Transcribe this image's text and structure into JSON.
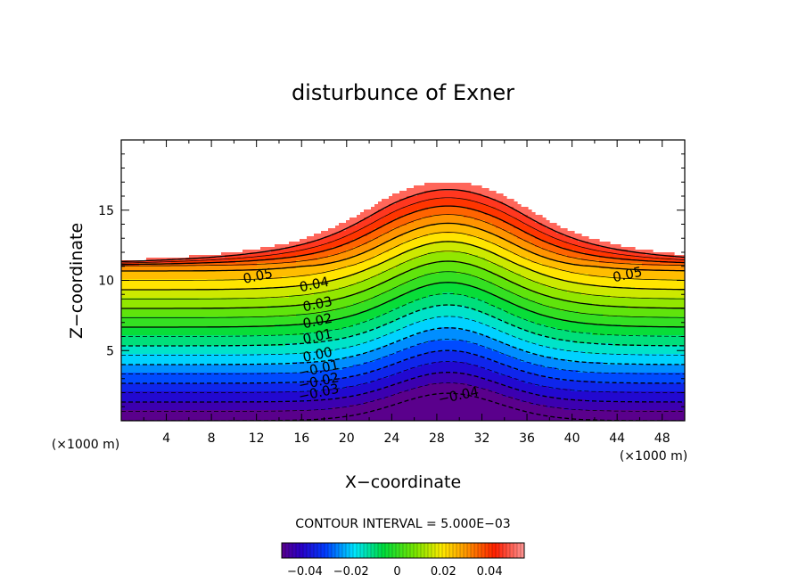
{
  "chart_data": {
    "type": "contour",
    "title": "disturbunce of Exner",
    "xlabel": "X−coordinate",
    "ylabel": "Z−coordinate",
    "x_unit_left": "(×1000 m)",
    "x_unit_right": "(×1000 m)",
    "xlim": [
      0,
      50
    ],
    "ylim": [
      0,
      20
    ],
    "x_ticks": [
      4,
      8,
      12,
      16,
      20,
      24,
      28,
      32,
      36,
      40,
      44,
      48
    ],
    "y_ticks": [
      5,
      10,
      15
    ],
    "contour_interval_text": "CONTOUR INTERVAL = 5.000E−03",
    "contour_interval": 0.005,
    "level_range": [
      -0.05,
      0.055
    ],
    "field_description_levels": {
      "bottom": -0.05,
      "top_clipped_above": 0.055
    },
    "contour_labels": [
      {
        "text": "0.05",
        "x": 12.2,
        "z": 10.0
      },
      {
        "text": "0.05",
        "x": 45.0,
        "z": 10.1
      },
      {
        "text": "0.04",
        "x": 17.2,
        "z": 9.4
      },
      {
        "text": "0.03",
        "x": 17.5,
        "z": 8.0
      },
      {
        "text": "0.02",
        "x": 17.5,
        "z": 6.8
      },
      {
        "text": "0.01",
        "x": 17.5,
        "z": 5.7
      },
      {
        "text": "0.00",
        "x": 17.5,
        "z": 4.4
      },
      {
        "text": "−0.01",
        "x": 17.6,
        "z": 3.4
      },
      {
        "text": "−0.02",
        "x": 17.6,
        "z": 2.5
      },
      {
        "text": "−0.03",
        "x": 17.6,
        "z": 1.7
      },
      {
        "text": "−0.04",
        "x": 30.0,
        "z": 1.5
      }
    ],
    "colorbar": {
      "ticks": [
        -0.04,
        -0.02,
        0,
        0.02,
        0.04
      ],
      "tick_labels": [
        "−0.04",
        "−0.02",
        "0",
        "0.02",
        "0.04"
      ],
      "range": [
        -0.05,
        0.055
      ]
    },
    "grid": false,
    "colormap": "rainbow (purple-blue-cyan-green-yellow-orange-red)"
  }
}
